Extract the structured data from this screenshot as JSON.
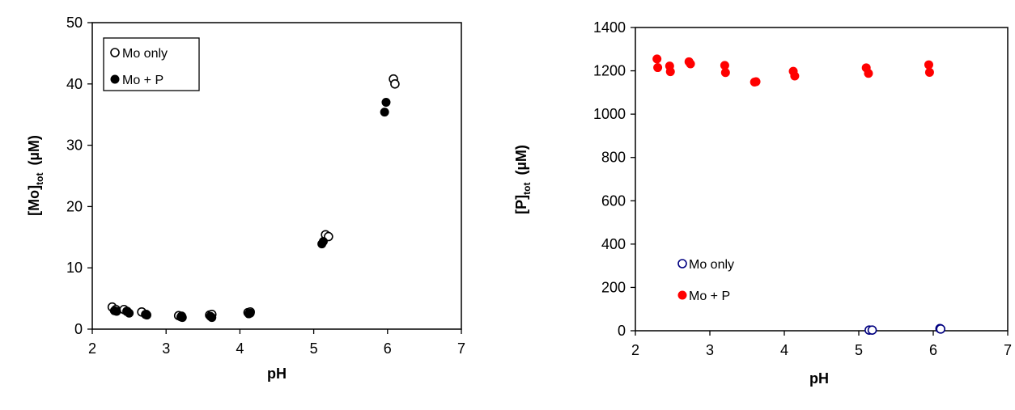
{
  "chart_data": [
    {
      "type": "scatter",
      "title": "",
      "xlabel": "pH",
      "ylabel_main": "[Mo]",
      "ylabel_sub": "tot",
      "ylabel_unit": "(µM)",
      "xlim": [
        2,
        7
      ],
      "ylim": [
        0,
        50
      ],
      "xticks": [
        2,
        3,
        4,
        5,
        6,
        7
      ],
      "yticks": [
        0,
        10,
        20,
        30,
        40,
        50
      ],
      "grid": false,
      "legend": {
        "placement": "top-left",
        "boxed": true,
        "entries": [
          {
            "label": "Mo only",
            "marker": "open-circle",
            "color": "#000000"
          },
          {
            "label": "Mo + P",
            "marker": "filled-circle",
            "color": "#000000"
          }
        ]
      },
      "series": [
        {
          "name": "Mo only",
          "marker": "open-circle",
          "color": "#000000",
          "x": [
            2.27,
            2.32,
            2.43,
            2.47,
            2.67,
            2.73,
            3.17,
            3.21,
            3.59,
            3.62,
            4.11,
            4.14,
            5.16,
            5.2,
            6.08,
            6.1
          ],
          "y": [
            3.6,
            3.2,
            3.2,
            2.9,
            2.8,
            2.4,
            2.2,
            2.1,
            2.3,
            2.4,
            2.7,
            2.8,
            15.4,
            15.1,
            40.8,
            40.0
          ]
        },
        {
          "name": "Mo + P",
          "marker": "filled-circle",
          "color": "#000000",
          "x": [
            2.3,
            2.33,
            2.47,
            2.5,
            2.72,
            2.74,
            3.2,
            3.22,
            3.6,
            3.62,
            4.12,
            4.14,
            5.11,
            5.13,
            5.96,
            5.98
          ],
          "y": [
            3.0,
            2.9,
            2.9,
            2.6,
            2.4,
            2.3,
            2.0,
            1.9,
            2.1,
            1.9,
            2.5,
            2.6,
            13.9,
            14.3,
            35.4,
            37.0
          ]
        }
      ]
    },
    {
      "type": "scatter",
      "title": "",
      "xlabel": "pH",
      "ylabel_main": "[P]",
      "ylabel_sub": "tot",
      "ylabel_unit": "(µM)",
      "xlim": [
        2,
        7
      ],
      "ylim": [
        0,
        1400
      ],
      "xticks": [
        2,
        3,
        4,
        5,
        6,
        7
      ],
      "yticks": [
        0,
        200,
        400,
        600,
        800,
        1000,
        1200,
        1400
      ],
      "grid": false,
      "legend": {
        "placement": "bottom-left",
        "boxed": false,
        "entries": [
          {
            "label": "Mo only",
            "marker": "open-circle",
            "color": "#000080"
          },
          {
            "label": "Mo + P",
            "marker": "filled-circle",
            "color": "#ff0000"
          }
        ]
      },
      "series": [
        {
          "name": "Mo only",
          "marker": "open-circle",
          "color": "#000080",
          "x": [
            5.14,
            5.18,
            6.09,
            6.1
          ],
          "y": [
            3,
            3,
            10,
            8
          ]
        },
        {
          "name": "Mo + P",
          "marker": "filled-circle",
          "color": "#ff0000",
          "x": [
            2.29,
            2.3,
            2.46,
            2.47,
            2.72,
            2.74,
            3.2,
            3.21,
            3.6,
            3.62,
            4.12,
            4.14,
            5.1,
            5.13,
            5.94,
            5.95
          ],
          "y": [
            1255,
            1215,
            1222,
            1196,
            1242,
            1232,
            1225,
            1192,
            1148,
            1150,
            1198,
            1176,
            1214,
            1188,
            1228,
            1193
          ]
        }
      ]
    }
  ]
}
